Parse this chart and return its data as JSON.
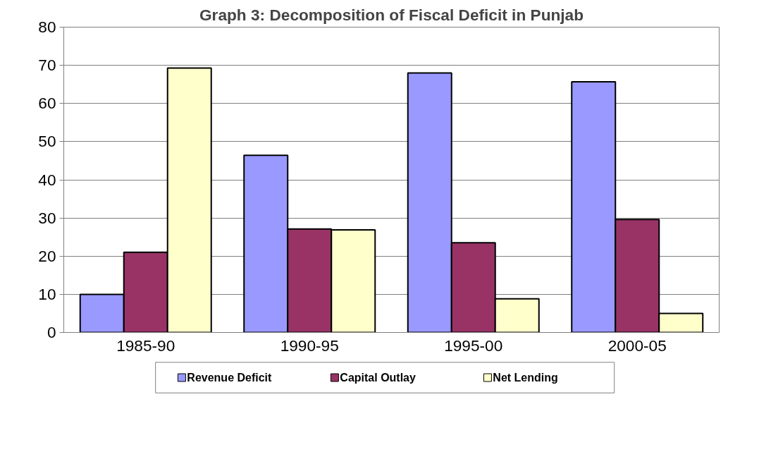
{
  "chart_data": {
    "type": "bar",
    "title": "Graph 3: Decomposition of Fiscal Deficit in Punjab",
    "categories": [
      "1985-90",
      "1990-95",
      "1995-00",
      "2000-05"
    ],
    "series": [
      {
        "name": "Revenue Deficit",
        "color": "#9999ff",
        "values": [
          10,
          46.4,
          68,
          65.7
        ]
      },
      {
        "name": "Capital Outlay",
        "color": "#993366",
        "values": [
          21,
          27.1,
          23.5,
          29.6
        ]
      },
      {
        "name": "Net Lending",
        "color": "#ffffcc",
        "values": [
          69.3,
          26.9,
          8.8,
          5
        ]
      }
    ],
    "ylim": [
      0,
      80
    ],
    "yticks": [
      0,
      10,
      20,
      30,
      40,
      50,
      60,
      70,
      80
    ],
    "grid": "y",
    "legend": "bottom"
  }
}
